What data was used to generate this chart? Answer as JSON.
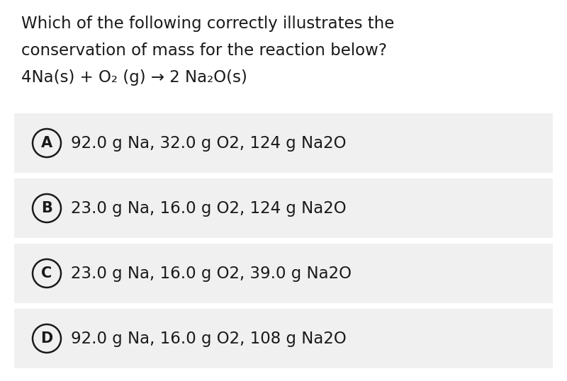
{
  "title_line1": "Which of the following correctly illustrates the",
  "title_line2": "conservation of mass for the reaction below?",
  "equation": "4Na(s) + O₂ (g) → 2 Na₂O(s)",
  "options": [
    {
      "label": "A",
      "text": "92.0 g Na, 32.0 g O2, 124 g Na2O"
    },
    {
      "label": "B",
      "text": "23.0 g Na, 16.0 g O2, 124 g Na2O"
    },
    {
      "label": "C",
      "text": "23.0 g Na, 16.0 g O2, 39.0 g Na2O"
    },
    {
      "label": "D",
      "text": "92.0 g Na, 16.0 g O2, 108 g Na2O"
    }
  ],
  "bg_color": "#ffffff",
  "option_bg_color": "#f0f0f0",
  "text_color": "#1a1a1a",
  "circle_color": "#1a1a1a",
  "title_fontsize": 16.5,
  "equation_fontsize": 16.5,
  "option_fontsize": 16.5,
  "label_fontsize": 15
}
